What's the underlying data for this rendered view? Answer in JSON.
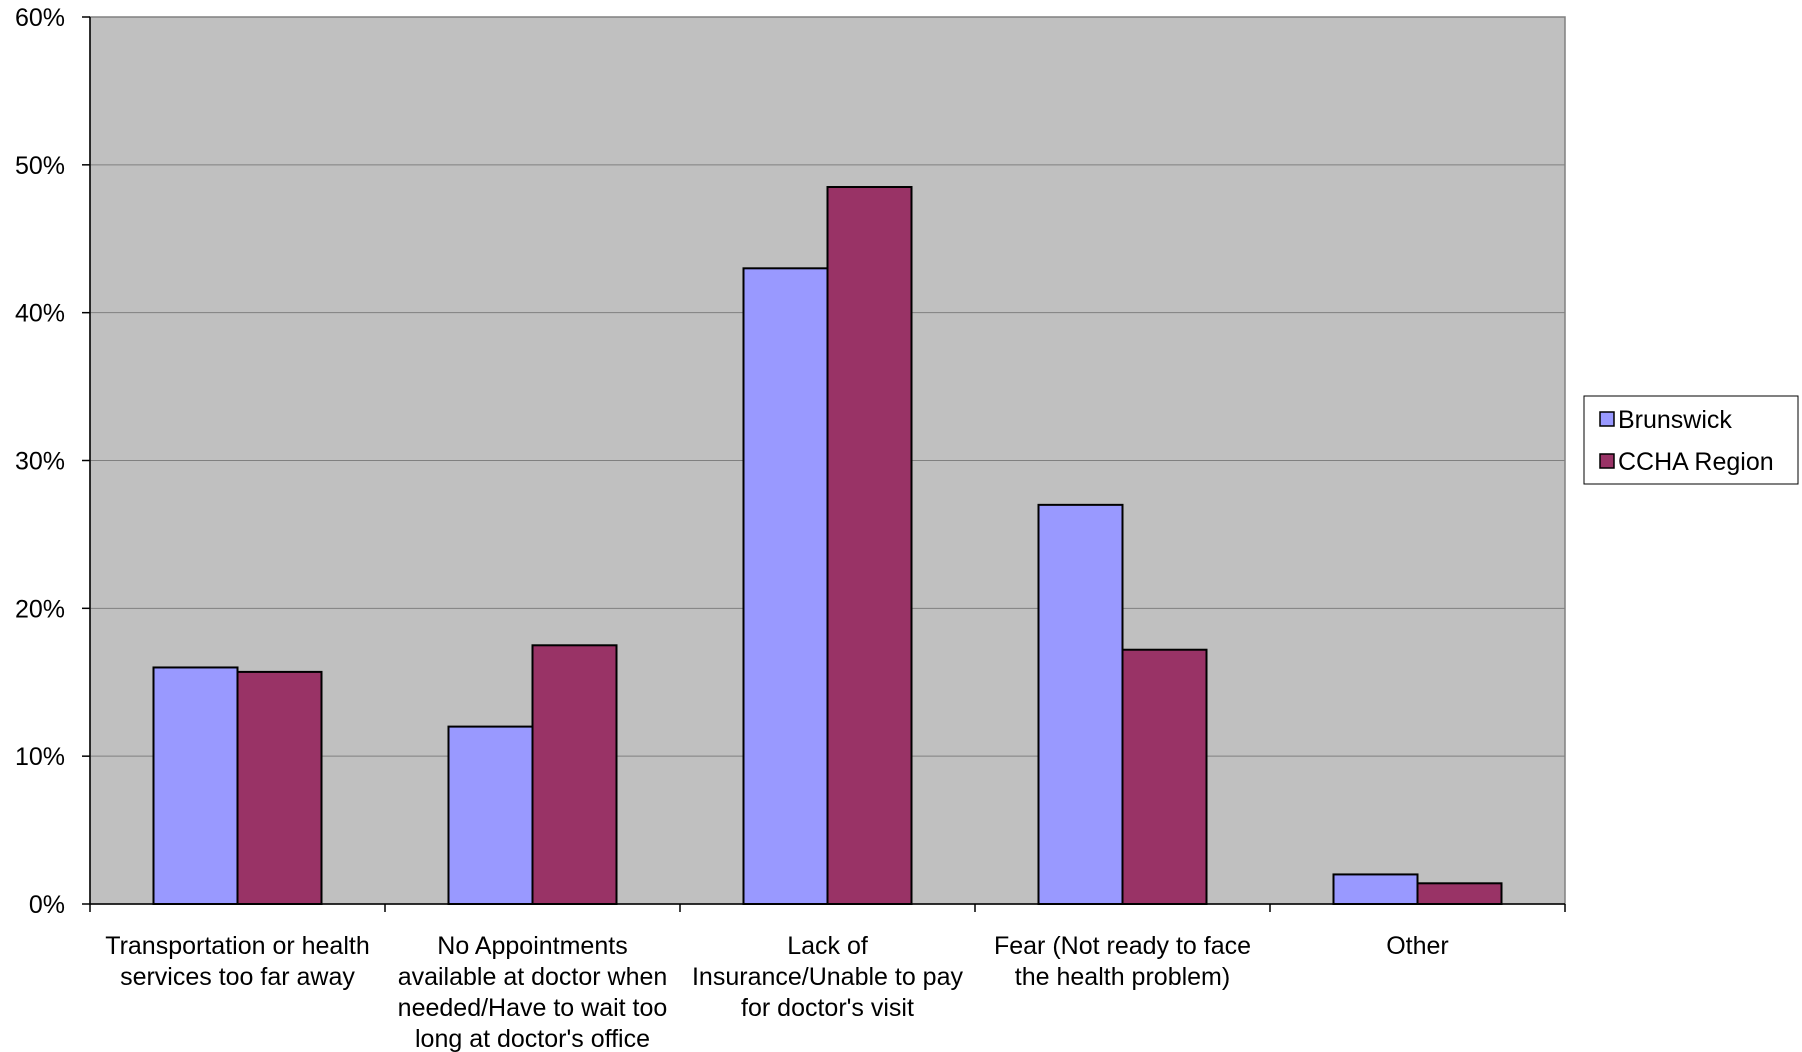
{
  "chart_data": {
    "type": "bar",
    "title": "",
    "xlabel": "",
    "ylabel": "",
    "categories": [
      [
        "Transportation or health",
        "services too far away"
      ],
      [
        "No Appointments",
        "available at doctor when",
        "needed/Have to wait too",
        "long at doctor's office"
      ],
      [
        "Lack of",
        "Insurance/Unable to pay",
        "for doctor's visit"
      ],
      [
        "Fear (Not ready to face",
        "the health problem)"
      ],
      [
        "Other"
      ]
    ],
    "series": [
      {
        "name": "Brunswick",
        "color": "#9999ff",
        "values": [
          16,
          12,
          43,
          27,
          2
        ]
      },
      {
        "name": "CCHA Region",
        "color": "#993366",
        "values": [
          15.7,
          17.5,
          48.5,
          17.2,
          1.4
        ]
      }
    ],
    "ylim": [
      0,
      60
    ],
    "yticks": [
      0,
      10,
      20,
      30,
      40,
      50,
      60
    ],
    "ytick_labels": [
      "0%",
      "10%",
      "20%",
      "30%",
      "40%",
      "50%",
      "60%"
    ],
    "grid": true,
    "plot_background": "#c0c0c0",
    "legend_position": "right"
  }
}
